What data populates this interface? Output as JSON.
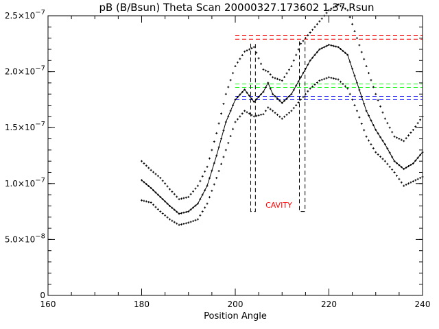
{
  "chart_data": {
    "type": "scatter",
    "title": "pB (B/Bsun) Theta Scan 20000327.173602 1.37 Rsun",
    "xlabel": "Position Angle",
    "ylabel": "",
    "xlim": [
      160,
      240
    ],
    "ylim": [
      0,
      2.5e-07
    ],
    "x_ticks": [
      {
        "value": 160,
        "label": "160"
      },
      {
        "value": 180,
        "label": "180"
      },
      {
        "value": 200,
        "label": "200"
      },
      {
        "value": 220,
        "label": "220"
      },
      {
        "value": 240,
        "label": "240"
      }
    ],
    "x_minor_step": 5,
    "y_ticks": [
      {
        "value": 0,
        "label": "0",
        "exp": ""
      },
      {
        "value": 5e-08,
        "label": "5.0×10",
        "exp": "−8"
      },
      {
        "value": 1e-07,
        "label": "1.0×10",
        "exp": "−7"
      },
      {
        "value": 1.5e-07,
        "label": "1.5×10",
        "exp": "−7"
      },
      {
        "value": 2e-07,
        "label": "2.0×10",
        "exp": "−7"
      },
      {
        "value": 2.5e-07,
        "label": "2.5×10",
        "exp": "−7"
      }
    ],
    "y_minor_step": 1e-08,
    "grid": false,
    "series": [
      {
        "role": "mean",
        "style": "line-with-points",
        "color": "#000000",
        "x": [
          180,
          182,
          184,
          186,
          188,
          190,
          192,
          194,
          196,
          198,
          200,
          202,
          204,
          206,
          207,
          208,
          210,
          212,
          214,
          216,
          218,
          220,
          222,
          224,
          226,
          228,
          230,
          232,
          234,
          236,
          238,
          240
        ],
        "values": [
          1.03e-07,
          9.6e-08,
          8.8e-08,
          8e-08,
          7.3e-08,
          7.5e-08,
          8.2e-08,
          9.8e-08,
          1.25e-07,
          1.55e-07,
          1.75e-07,
          1.84e-07,
          1.73e-07,
          1.82e-07,
          1.9e-07,
          1.8e-07,
          1.72e-07,
          1.8e-07,
          1.95e-07,
          2.1e-07,
          2.2e-07,
          2.24e-07,
          2.22e-07,
          2.15e-07,
          1.9e-07,
          1.65e-07,
          1.48e-07,
          1.35e-07,
          1.2e-07,
          1.13e-07,
          1.18e-07,
          1.28e-07
        ]
      },
      {
        "role": "upper",
        "style": "points",
        "color": "#000000",
        "x": [
          180,
          182,
          184,
          186,
          188,
          190,
          192,
          194,
          196,
          198,
          200,
          202,
          204,
          206,
          207,
          208,
          210,
          212,
          214,
          216,
          218,
          220,
          222,
          224,
          226,
          228,
          230,
          232,
          234,
          236,
          238,
          240
        ],
        "values": [
          1.2e-07,
          1.12e-07,
          1.05e-07,
          9.5e-08,
          8.6e-08,
          8.8e-08,
          9.8e-08,
          1.15e-07,
          1.45e-07,
          1.8e-07,
          2.05e-07,
          2.18e-07,
          2.22e-07,
          2.02e-07,
          2e-07,
          1.95e-07,
          1.92e-07,
          2.05e-07,
          2.25e-07,
          2.35e-07,
          2.45e-07,
          2.55e-07,
          2.6e-07,
          2.55e-07,
          2.3e-07,
          2.05e-07,
          1.8e-07,
          1.58e-07,
          1.42e-07,
          1.38e-07,
          1.48e-07,
          1.6e-07
        ]
      },
      {
        "role": "lower",
        "style": "points",
        "color": "#000000",
        "x": [
          180,
          182,
          184,
          186,
          188,
          190,
          192,
          194,
          196,
          198,
          200,
          202,
          204,
          206,
          207,
          208,
          210,
          212,
          214,
          216,
          218,
          220,
          222,
          224,
          226,
          228,
          230,
          232,
          234,
          236,
          238,
          240
        ],
        "values": [
          8.5e-08,
          8.3e-08,
          7.5e-08,
          6.8e-08,
          6.3e-08,
          6.5e-08,
          6.8e-08,
          8.2e-08,
          1.05e-07,
          1.3e-07,
          1.55e-07,
          1.65e-07,
          1.6e-07,
          1.62e-07,
          1.68e-07,
          1.65e-07,
          1.58e-07,
          1.65e-07,
          1.75e-07,
          1.85e-07,
          1.92e-07,
          1.95e-07,
          1.93e-07,
          1.85e-07,
          1.65e-07,
          1.42e-07,
          1.28e-07,
          1.2e-07,
          1.1e-07,
          9.8e-08,
          1.02e-07,
          1.06e-07
        ]
      }
    ],
    "reference_lines": [
      {
        "y": 2.325e-07,
        "color": "#ff0000"
      },
      {
        "y": 2.29e-07,
        "color": "#ff0000"
      },
      {
        "y": 1.89e-07,
        "color": "#00ff00"
      },
      {
        "y": 1.86e-07,
        "color": "#00ff00"
      },
      {
        "y": 1.78e-07,
        "color": "#0000ff"
      },
      {
        "y": 1.75e-07,
        "color": "#0000ff"
      }
    ],
    "reference_x_range": [
      200,
      240
    ],
    "cavity_marks": [
      {
        "x": [
          203.3,
          204.3
        ],
        "y_top": 2.25e-07,
        "y_bottom": 7.5e-08
      },
      {
        "x": [
          213.7,
          214.9
        ],
        "y_top": 2.27e-07,
        "y_bottom": 7.5e-08
      }
    ],
    "annotations": [
      {
        "text": "CAVITY",
        "x": 209.3,
        "y": 7.85e-08,
        "color": "#ff0000"
      }
    ]
  }
}
